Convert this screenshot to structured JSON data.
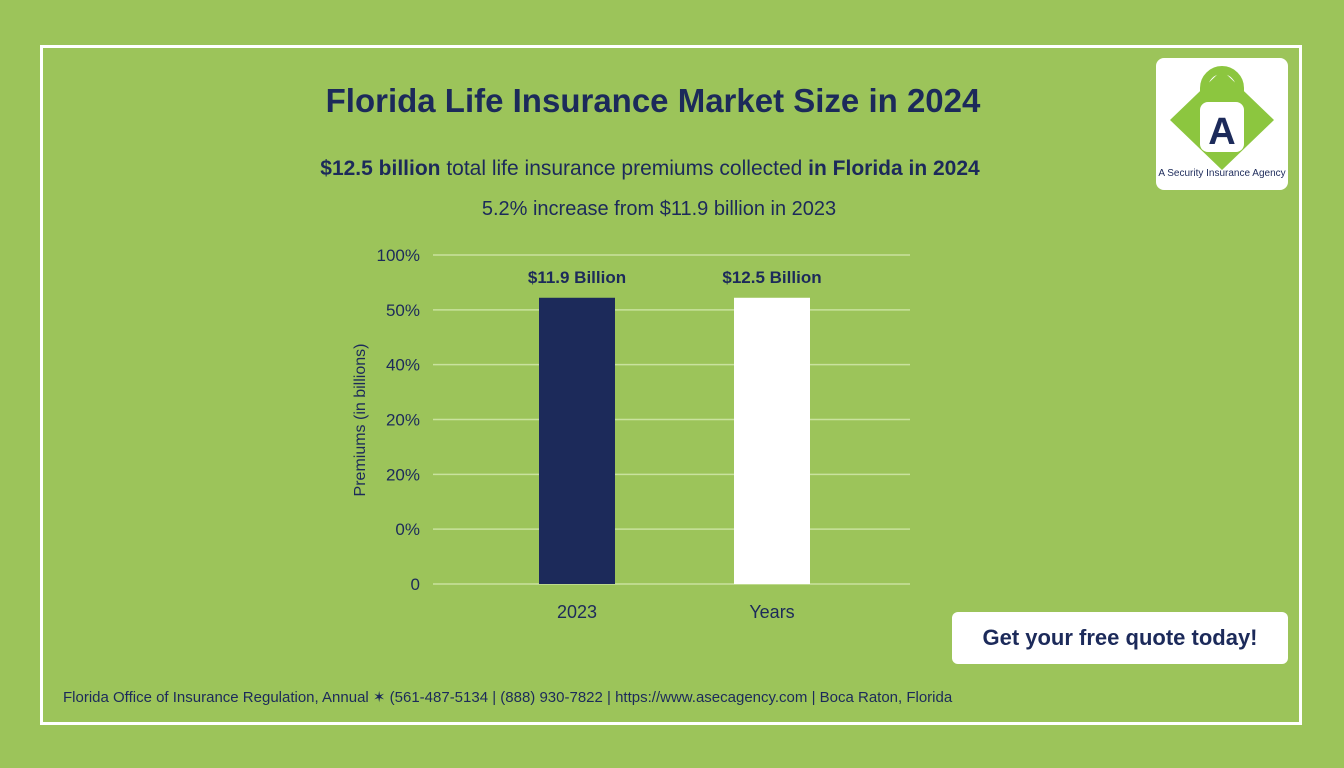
{
  "title": "Florida Life Insurance Market Size in 2024",
  "subtitle": {
    "bold_start": "$12.5 billion",
    "middle": " total life insurance premiums collected ",
    "bold_end": "in Florida in 2024"
  },
  "subtitle2": "5.2% increase from $11.9 billion in 2023",
  "logo": {
    "text": "A Security Insurance Agency",
    "letter": "A"
  },
  "cta_label": "Get your free quote today!",
  "footer": "Florida Office of Insurance Regulation, Annual ✶ (561-487-5134 | (888) 930-7822 | https://www.asecagency.com | Boca Raton, Florida",
  "colors": {
    "background": "#9cc45a",
    "navy": "#1c2a5a",
    "bar_2023": "#1c2a5a",
    "bar_2024": "#ffffff",
    "logo_green": "#8cc63f"
  },
  "chart_data": {
    "type": "bar",
    "ylabel": "Premiums (in billions)",
    "y_tick_labels": [
      "100%",
      "50%",
      "40%",
      "20%",
      "20%",
      "0%",
      "0"
    ],
    "x_tick_labels": [
      "2023",
      "Years"
    ],
    "bars": [
      {
        "label": "$11.9 Billion",
        "value": 11.9,
        "color": "#1c2a5a",
        "level": 0.87
      },
      {
        "label": "$12.5 Billion",
        "value": 12.5,
        "color": "#ffffff",
        "level": 0.87
      }
    ],
    "grid": true
  }
}
